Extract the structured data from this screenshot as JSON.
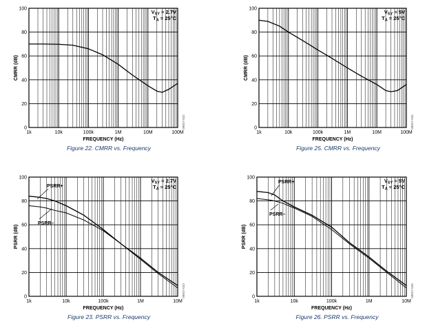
{
  "chart_data": [
    {
      "id": "fig22",
      "type": "line",
      "caption": "Figure 22. CMRR vs. Frequency",
      "xlabel": "FREQUENCY (Hz)",
      "ylabel": "CMRR (dB)",
      "xscale": "log",
      "xlim": [
        1000,
        100000000
      ],
      "ylim": [
        0,
        100
      ],
      "xticks": [
        1000,
        10000,
        100000,
        1000000,
        10000000,
        100000000
      ],
      "xtick_labels": [
        "1k",
        "10k",
        "100k",
        "1M",
        "10M",
        "100M"
      ],
      "yticks": [
        0,
        20,
        40,
        60,
        80,
        100
      ],
      "ytick_labels": [
        "0",
        "20",
        "40",
        "60",
        "80",
        "100"
      ],
      "conditions": [
        {
          "main": "V",
          "sub": "SY",
          "rest": " = 2.7V"
        },
        {
          "main": "T",
          "sub": "A",
          "rest": " = 25°C"
        }
      ],
      "figure_code": "09827-022",
      "series": [
        {
          "name": "CMRR",
          "x": [
            1000,
            3000,
            10000,
            30000,
            100000,
            300000,
            1000000,
            3000000,
            10000000,
            20000000,
            30000000,
            50000000,
            100000000
          ],
          "y": [
            70,
            70,
            69.8,
            69,
            66,
            61,
            53,
            44,
            35,
            30.5,
            29.5,
            32,
            37
          ]
        }
      ]
    },
    {
      "id": "fig25",
      "type": "line",
      "caption": "Figure 25. CMRR vs. Frequency",
      "xlabel": "FREQUENCY (Hz)",
      "ylabel": "CMRR (dB)",
      "xscale": "log",
      "xlim": [
        1000,
        100000000
      ],
      "ylim": [
        0,
        100
      ],
      "xticks": [
        1000,
        10000,
        100000,
        1000000,
        10000000,
        100000000
      ],
      "xtick_labels": [
        "1k",
        "10k",
        "100k",
        "1M",
        "10M",
        "100M"
      ],
      "yticks": [
        0,
        20,
        40,
        60,
        80,
        100
      ],
      "ytick_labels": [
        "0",
        "20",
        "40",
        "60",
        "80",
        "100"
      ],
      "conditions": [
        {
          "main": "V",
          "sub": "SY",
          "rest": " = 5V"
        },
        {
          "main": "T",
          "sub": "A",
          "rest": " = 25°C"
        }
      ],
      "figure_code": "09827-025",
      "series": [
        {
          "name": "CMRR",
          "x": [
            1000,
            2000,
            5000,
            10000,
            30000,
            100000,
            300000,
            1000000,
            3000000,
            10000000,
            20000000,
            30000000,
            50000000,
            100000000
          ],
          "y": [
            90,
            89,
            85,
            80,
            73,
            65,
            58,
            50,
            43,
            36,
            31,
            30,
            31,
            36
          ]
        }
      ]
    },
    {
      "id": "fig23",
      "type": "line",
      "caption": "Figure 23. PSRR vs. Frequency",
      "xlabel": "FREQUENCY (Hz)",
      "ylabel": "PSRR (dB)",
      "xscale": "log",
      "xlim": [
        1000,
        10000000
      ],
      "ylim": [
        0,
        100
      ],
      "xticks": [
        1000,
        10000,
        100000,
        1000000,
        10000000
      ],
      "xtick_labels": [
        "1k",
        "10k",
        "100k",
        "1M",
        "10M"
      ],
      "yticks": [
        0,
        20,
        40,
        60,
        80,
        100
      ],
      "ytick_labels": [
        "0",
        "20",
        "40",
        "60",
        "80",
        "100"
      ],
      "conditions": [
        {
          "main": "V",
          "sub": "SY",
          "rest": " = 2.7V"
        },
        {
          "main": "T",
          "sub": "A",
          "rest": " = 25°C"
        }
      ],
      "annotations": [
        "PSRR+",
        "PSRR–"
      ],
      "figure_code": "09827-023",
      "series": [
        {
          "name": "PSRR+",
          "x": [
            1000,
            2000,
            3000,
            5000,
            10000,
            30000,
            100000,
            300000,
            1000000,
            3000000,
            10000000
          ],
          "y": [
            84,
            83,
            82,
            80,
            76,
            68,
            56,
            44,
            32,
            20,
            9
          ]
        },
        {
          "name": "PSRR–",
          "x": [
            1000,
            2000,
            3000,
            5000,
            10000,
            30000,
            100000,
            300000,
            1000000,
            3000000,
            10000000
          ],
          "y": [
            76,
            75,
            74,
            72,
            70,
            64,
            55,
            44,
            31,
            19,
            7
          ]
        }
      ]
    },
    {
      "id": "fig26",
      "type": "line",
      "caption": "Figure 26. PSRR vs. Frequency",
      "xlabel": "FREQUENCY (Hz)",
      "ylabel": "PSRR (dB)",
      "xscale": "log",
      "xlim": [
        1000,
        10000000
      ],
      "ylim": [
        0,
        100
      ],
      "xticks": [
        1000,
        10000,
        100000,
        1000000,
        10000000
      ],
      "xtick_labels": [
        "1k",
        "10k",
        "100k",
        "1M",
        "10M"
      ],
      "yticks": [
        0,
        20,
        40,
        60,
        80,
        100
      ],
      "ytick_labels": [
        "0",
        "20",
        "40",
        "60",
        "80",
        "100"
      ],
      "conditions": [
        {
          "main": "V",
          "sub": "SY",
          "rest": " = 5V"
        },
        {
          "main": "T",
          "sub": "A",
          "rest": " = 25°C"
        }
      ],
      "annotations": [
        "PSRR+",
        "PSRR–"
      ],
      "figure_code": "09827-026",
      "series": [
        {
          "name": "PSRR+",
          "x": [
            1000,
            2000,
            3000,
            5000,
            10000,
            30000,
            100000,
            300000,
            1000000,
            3000000,
            10000000
          ],
          "y": [
            88,
            87,
            85,
            80,
            75,
            68,
            58,
            45,
            33,
            21,
            9
          ]
        },
        {
          "name": "PSRR–",
          "x": [
            1000,
            2000,
            3000,
            5000,
            10000,
            30000,
            100000,
            300000,
            1000000,
            3000000,
            10000000
          ],
          "y": [
            82,
            81,
            80,
            78,
            74,
            67,
            56,
            44,
            32,
            20,
            7
          ]
        }
      ]
    }
  ]
}
